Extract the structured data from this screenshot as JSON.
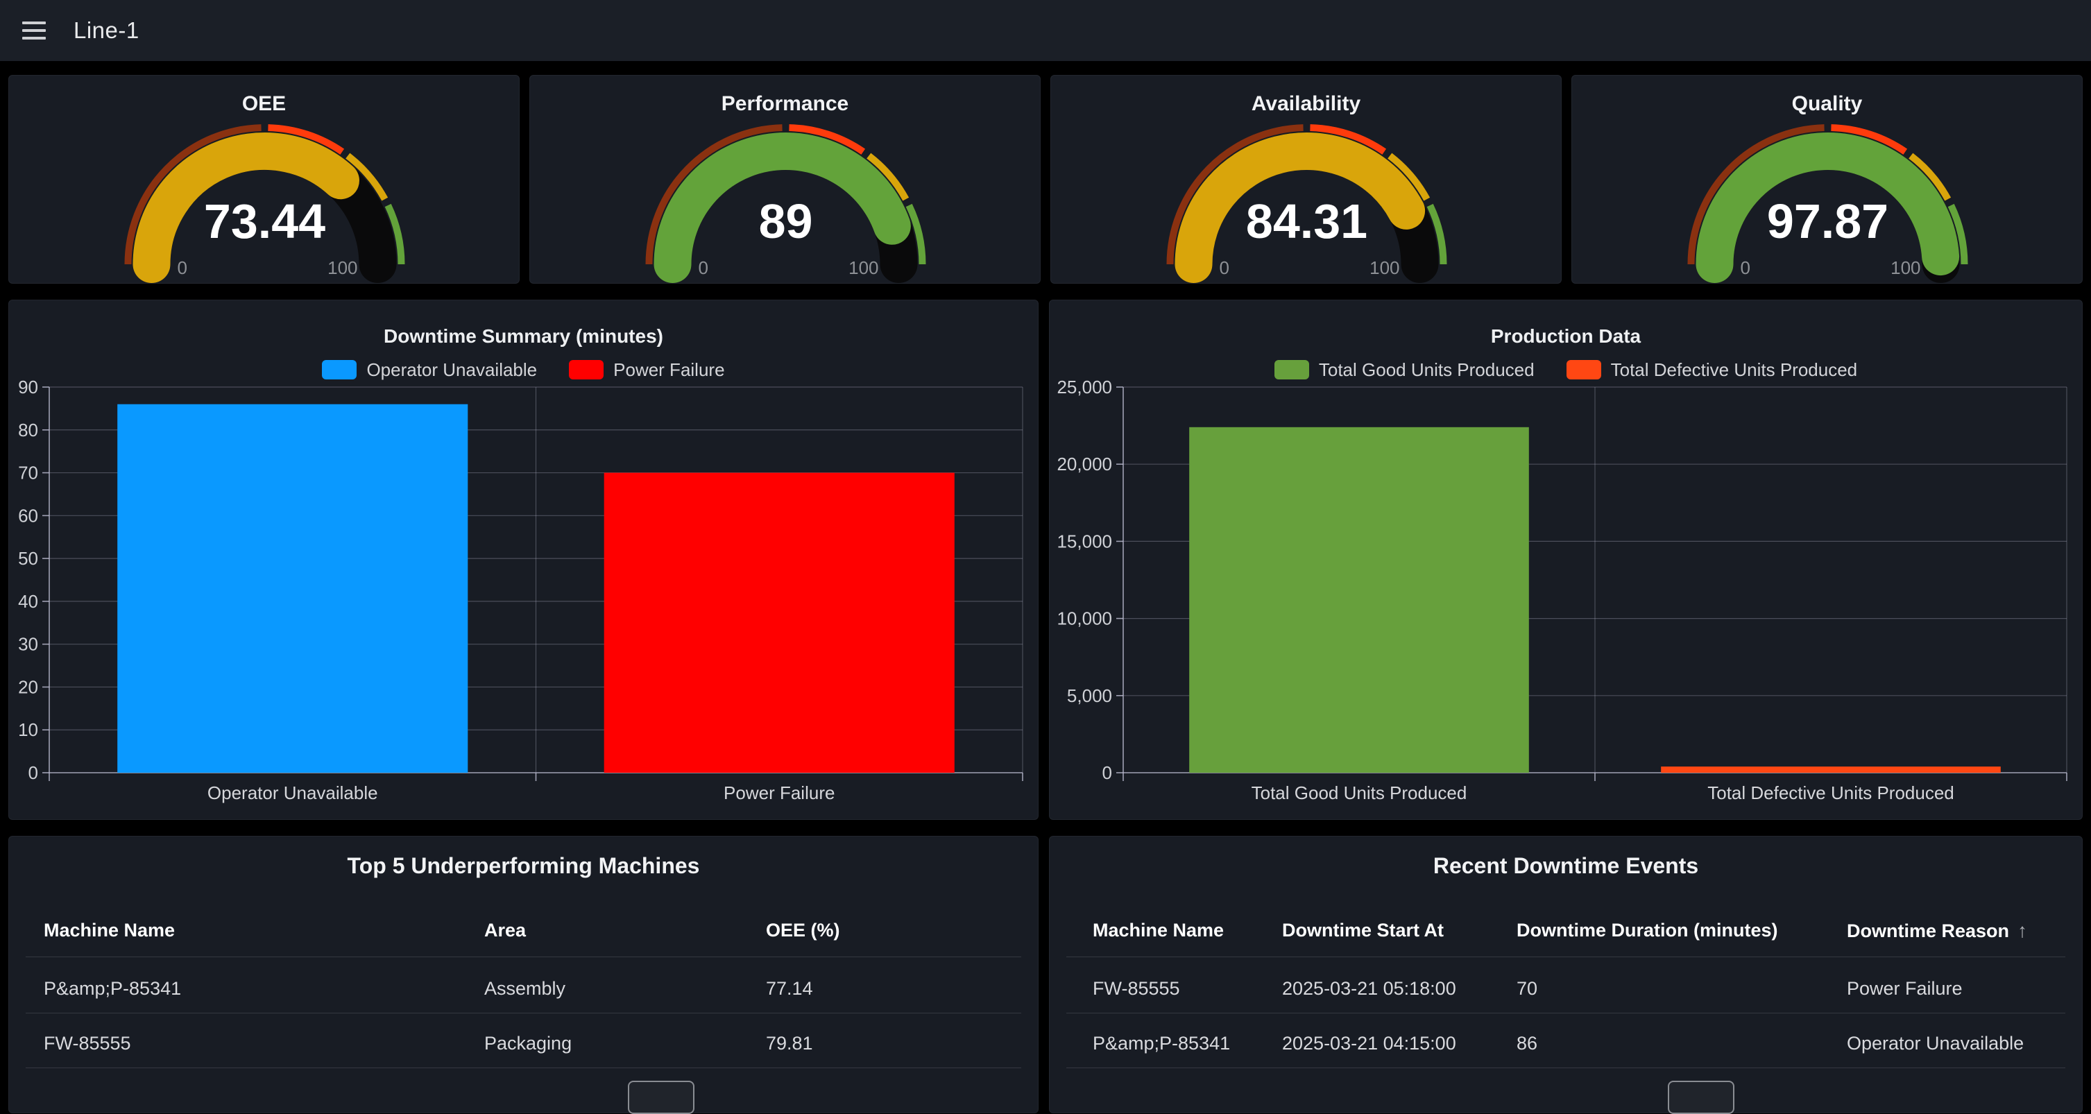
{
  "navbar": {
    "title": "Line-1"
  },
  "colors": {
    "page_bg": "#000000",
    "panel_bg": "#181C24",
    "navbar_bg": "#1B1F27",
    "gauge_track": "#0A0A0B",
    "grid_line": "rgba(185,184,206,0.32)",
    "axis_line": "rgba(185,184,206,0.85)"
  },
  "gauges": [
    {
      "title": "OEE",
      "value": 73.44,
      "display": "73.44",
      "min_label": "0",
      "max_label": "100",
      "fill": "#D9A50B"
    },
    {
      "title": "Performance",
      "value": 89,
      "display": "89",
      "min_label": "0",
      "max_label": "100",
      "fill": "#63A33A"
    },
    {
      "title": "Availability",
      "value": 84.31,
      "display": "84.31",
      "min_label": "0",
      "max_label": "100",
      "fill": "#D9A50B"
    },
    {
      "title": "Quality",
      "value": 97.87,
      "display": "97.87",
      "min_label": "0",
      "max_label": "100",
      "fill": "#63A33A"
    }
  ],
  "gauge_thresholds": [
    {
      "from": 0,
      "to": 50,
      "color": "#8A3110"
    },
    {
      "from": 50,
      "to": 70,
      "color": "#FF3B0C"
    },
    {
      "from": 70,
      "to": 85,
      "color": "#D9A50B"
    },
    {
      "from": 85,
      "to": 100,
      "color": "#63A33A"
    }
  ],
  "chart_data": [
    {
      "type": "bar",
      "title": "Downtime Summary (minutes)",
      "categories": [
        "Operator Unavailable",
        "Power Failure"
      ],
      "values": [
        86,
        70
      ],
      "bar_colors": [
        "#0A99FF",
        "#FF0000"
      ],
      "legend": [
        "Operator Unavailable",
        "Power Failure"
      ],
      "legend_position": "top",
      "grid": true,
      "xlabel": "",
      "ylabel": "",
      "ylim": [
        0,
        90
      ],
      "ytick_step": 10,
      "ytick_labels": [
        "0",
        "10",
        "20",
        "30",
        "40",
        "50",
        "60",
        "70",
        "80",
        "90"
      ]
    },
    {
      "type": "bar",
      "title": "Production Data",
      "categories": [
        "Total Good Units Produced",
        "Total Defective Units Produced"
      ],
      "values": [
        22400,
        400
      ],
      "bar_colors": [
        "#67A03C",
        "#FF4713"
      ],
      "legend": [
        "Total Good Units Produced",
        "Total Defective Units Produced"
      ],
      "legend_position": "top",
      "grid": true,
      "xlabel": "",
      "ylabel": "",
      "ylim": [
        0,
        25000
      ],
      "ytick_step": 5000,
      "ytick_labels": [
        "0",
        "5,000",
        "10,000",
        "15,000",
        "20,000",
        "25,000"
      ]
    }
  ],
  "tables": [
    {
      "title": "Top 5 Underperforming Machines",
      "columns": [
        "Machine Name",
        "Area",
        "OEE (%)"
      ],
      "sort_column": -1,
      "sort_icon": "",
      "rows": [
        [
          "P&amp;P-85341",
          "Assembly",
          "77.14"
        ],
        [
          "FW-85555",
          "Packaging",
          "79.81"
        ]
      ]
    },
    {
      "title": "Recent Downtime Events",
      "columns": [
        "Machine Name",
        "Downtime Start At",
        "Downtime Duration (minutes)",
        "Downtime Reason"
      ],
      "sort_column": 3,
      "sort_icon": "↑",
      "rows": [
        [
          "FW-85555",
          "2025-03-21 05:18:00",
          "70",
          "Power Failure"
        ],
        [
          "P&amp;P-85341",
          "2025-03-21 04:15:00",
          "86",
          "Operator Unavailable"
        ]
      ]
    }
  ]
}
